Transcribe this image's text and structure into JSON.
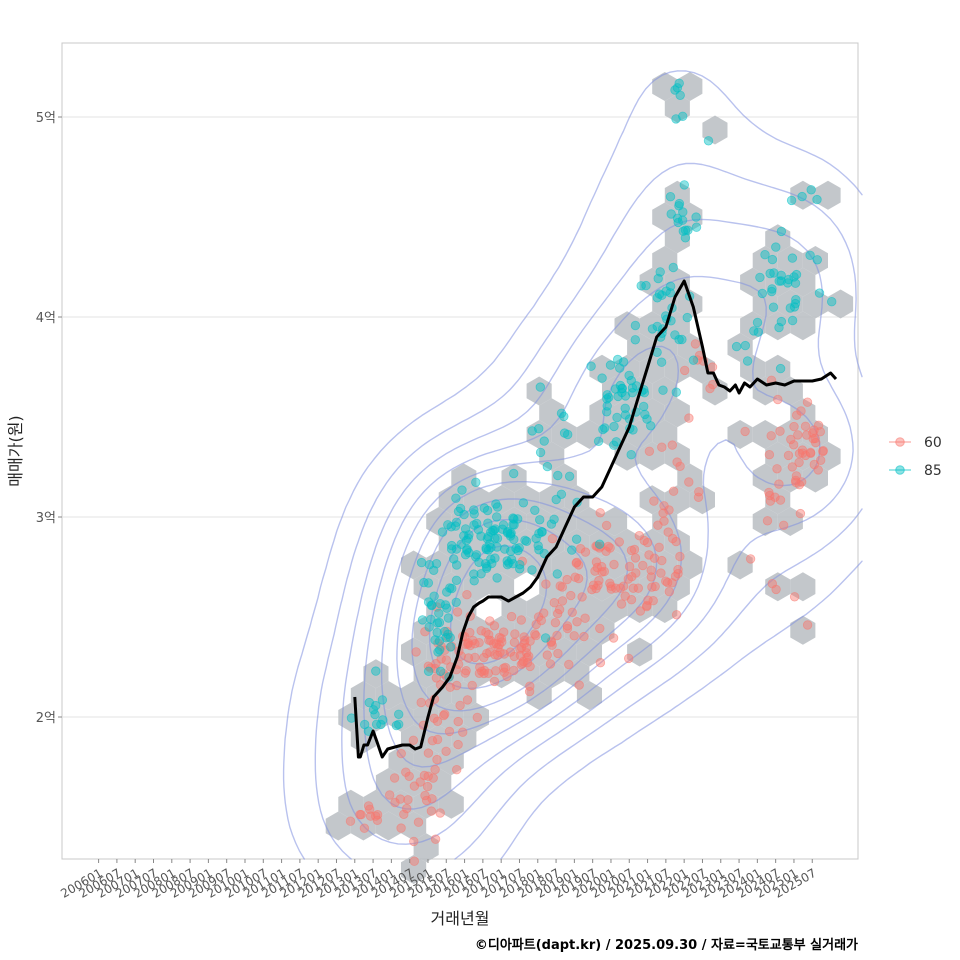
{
  "caption": "©디아파트(dapt.kr) / 2025.09.30 / 자료=국토교통부 실거래가",
  "colors": {
    "series_60": "#f8766d",
    "series_85": "#00bfc4",
    "hex": "#b9bdc2",
    "contour": "#7f8fe0",
    "trend": "#000000",
    "grid": "#e3e3e3",
    "panel_border": "#c8c8c8"
  },
  "chart_data": {
    "type": "scatter",
    "title": "",
    "xlabel": "거래년월",
    "ylabel": "매매가(원)",
    "x_tick_labels": [
      "200601",
      "200607",
      "200701",
      "200707",
      "200801",
      "200807",
      "200901",
      "200907",
      "201001",
      "201007",
      "201101",
      "201107",
      "201201",
      "201207",
      "201301",
      "201307",
      "201401",
      "201407",
      "201501",
      "201507",
      "201601",
      "201607",
      "201701",
      "201707",
      "201801",
      "201807",
      "201901",
      "201907",
      "202001",
      "202007",
      "202101",
      "202107",
      "202201",
      "202207",
      "202301",
      "202307",
      "202401",
      "202407",
      "202501",
      "202507"
    ],
    "x_range_index": [
      -2,
      41.5
    ],
    "y_ticks": [
      {
        "value": 2.0,
        "label": "2억"
      },
      {
        "value": 3.0,
        "label": "3억"
      },
      {
        "value": 4.0,
        "label": "4억"
      },
      {
        "value": 5.0,
        "label": "5억"
      }
    ],
    "y_range": [
      1.29,
      5.37
    ],
    "legend": [
      {
        "name": "60",
        "color": "#f8766d"
      },
      {
        "name": "85",
        "color": "#00bfc4"
      }
    ],
    "legend_position": "right",
    "trend_line": {
      "name": "moving average",
      "x": [
        14.0,
        14.2,
        14.3,
        14.5,
        14.7,
        15.0,
        15.2,
        15.5,
        15.8,
        16.2,
        16.6,
        17.0,
        17.3,
        17.6,
        18.0,
        18.3,
        18.8,
        19.2,
        19.6,
        19.9,
        20.2,
        20.5,
        20.8,
        21.0,
        21.3,
        21.6,
        22.0,
        22.4,
        22.8,
        23.2,
        23.6,
        24.0,
        24.5,
        25.0,
        25.5,
        26.0,
        26.5,
        27.0,
        27.5,
        28.0,
        28.5,
        29.0,
        29.5,
        30.0,
        30.5,
        31.0,
        31.5,
        32.0,
        32.5,
        33.0,
        33.3,
        33.6,
        33.9,
        34.2,
        34.5,
        34.8,
        35.0,
        35.3,
        35.6,
        36.0,
        36.5,
        37.0,
        37.5,
        38.0,
        38.5,
        39.0,
        39.5,
        40.0,
        40.3
      ],
      "y": [
        2.1,
        1.8,
        1.8,
        1.86,
        1.86,
        1.93,
        1.88,
        1.8,
        1.84,
        1.85,
        1.86,
        1.86,
        1.84,
        1.85,
        2.0,
        2.1,
        2.15,
        2.2,
        2.3,
        2.42,
        2.5,
        2.55,
        2.57,
        2.58,
        2.6,
        2.6,
        2.6,
        2.58,
        2.6,
        2.62,
        2.65,
        2.7,
        2.8,
        2.85,
        2.95,
        3.05,
        3.1,
        3.1,
        3.15,
        3.25,
        3.35,
        3.45,
        3.6,
        3.75,
        3.9,
        3.95,
        4.1,
        4.18,
        4.05,
        3.85,
        3.72,
        3.72,
        3.66,
        3.65,
        3.63,
        3.66,
        3.62,
        3.67,
        3.65,
        3.69,
        3.66,
        3.67,
        3.66,
        3.68,
        3.68,
        3.68,
        3.69,
        3.72,
        3.69
      ]
    },
    "series": [
      {
        "name": "60",
        "clusters": [
          {
            "cx": 15.0,
            "cy": 1.5,
            "sx": 0.6,
            "sy": 0.04,
            "n": 10
          },
          {
            "cx": 17.5,
            "cy": 1.62,
            "sx": 0.8,
            "sy": 0.13,
            "n": 30
          },
          {
            "cx": 19.0,
            "cy": 2.1,
            "sx": 0.8,
            "sy": 0.18,
            "n": 40
          },
          {
            "cx": 21.5,
            "cy": 2.33,
            "sx": 1.6,
            "sy": 0.09,
            "n": 80
          },
          {
            "cx": 25.0,
            "cy": 2.45,
            "sx": 1.4,
            "sy": 0.14,
            "n": 35
          },
          {
            "cx": 27.5,
            "cy": 2.75,
            "sx": 1.5,
            "sy": 0.12,
            "n": 50
          },
          {
            "cx": 30.0,
            "cy": 2.7,
            "sx": 1.0,
            "sy": 0.12,
            "n": 30
          },
          {
            "cx": 31.5,
            "cy": 3.1,
            "sx": 0.8,
            "sy": 0.18,
            "n": 20
          },
          {
            "cx": 33.0,
            "cy": 3.75,
            "sx": 0.6,
            "sy": 0.06,
            "n": 8
          },
          {
            "cx": 36.5,
            "cy": 3.1,
            "sx": 1.0,
            "sy": 0.25,
            "n": 15
          },
          {
            "cx": 38.5,
            "cy": 3.32,
            "sx": 0.9,
            "sy": 0.13,
            "n": 40
          },
          {
            "cx": 38.0,
            "cy": 2.6,
            "sx": 0.1,
            "sy": 0.01,
            "n": 1
          }
        ]
      },
      {
        "name": "85",
        "clusters": [
          {
            "cx": 15.5,
            "cy": 2.0,
            "sx": 0.8,
            "sy": 0.07,
            "n": 15
          },
          {
            "cx": 18.6,
            "cy": 2.45,
            "sx": 0.6,
            "sy": 0.15,
            "n": 35
          },
          {
            "cx": 20.3,
            "cy": 2.88,
            "sx": 1.0,
            "sy": 0.12,
            "n": 45
          },
          {
            "cx": 22.5,
            "cy": 2.88,
            "sx": 1.2,
            "sy": 0.08,
            "n": 60
          },
          {
            "cx": 25.0,
            "cy": 3.2,
            "sx": 1.0,
            "sy": 0.2,
            "n": 25
          },
          {
            "cx": 28.5,
            "cy": 3.58,
            "sx": 1.0,
            "sy": 0.12,
            "n": 45
          },
          {
            "cx": 31.0,
            "cy": 3.95,
            "sx": 0.8,
            "sy": 0.18,
            "n": 30
          },
          {
            "cx": 31.8,
            "cy": 4.5,
            "sx": 0.5,
            "sy": 0.12,
            "n": 15
          },
          {
            "cx": 31.8,
            "cy": 5.07,
            "sx": 0.3,
            "sy": 0.1,
            "n": 6
          },
          {
            "cx": 33.5,
            "cy": 4.9,
            "sx": 0.1,
            "sy": 0.02,
            "n": 1
          },
          {
            "cx": 35.5,
            "cy": 3.82,
            "sx": 0.4,
            "sy": 0.03,
            "n": 3
          },
          {
            "cx": 37.5,
            "cy": 4.17,
            "sx": 1.2,
            "sy": 0.15,
            "n": 35
          },
          {
            "cx": 39.0,
            "cy": 4.58,
            "sx": 0.6,
            "sy": 0.03,
            "n": 4
          }
        ]
      }
    ]
  }
}
